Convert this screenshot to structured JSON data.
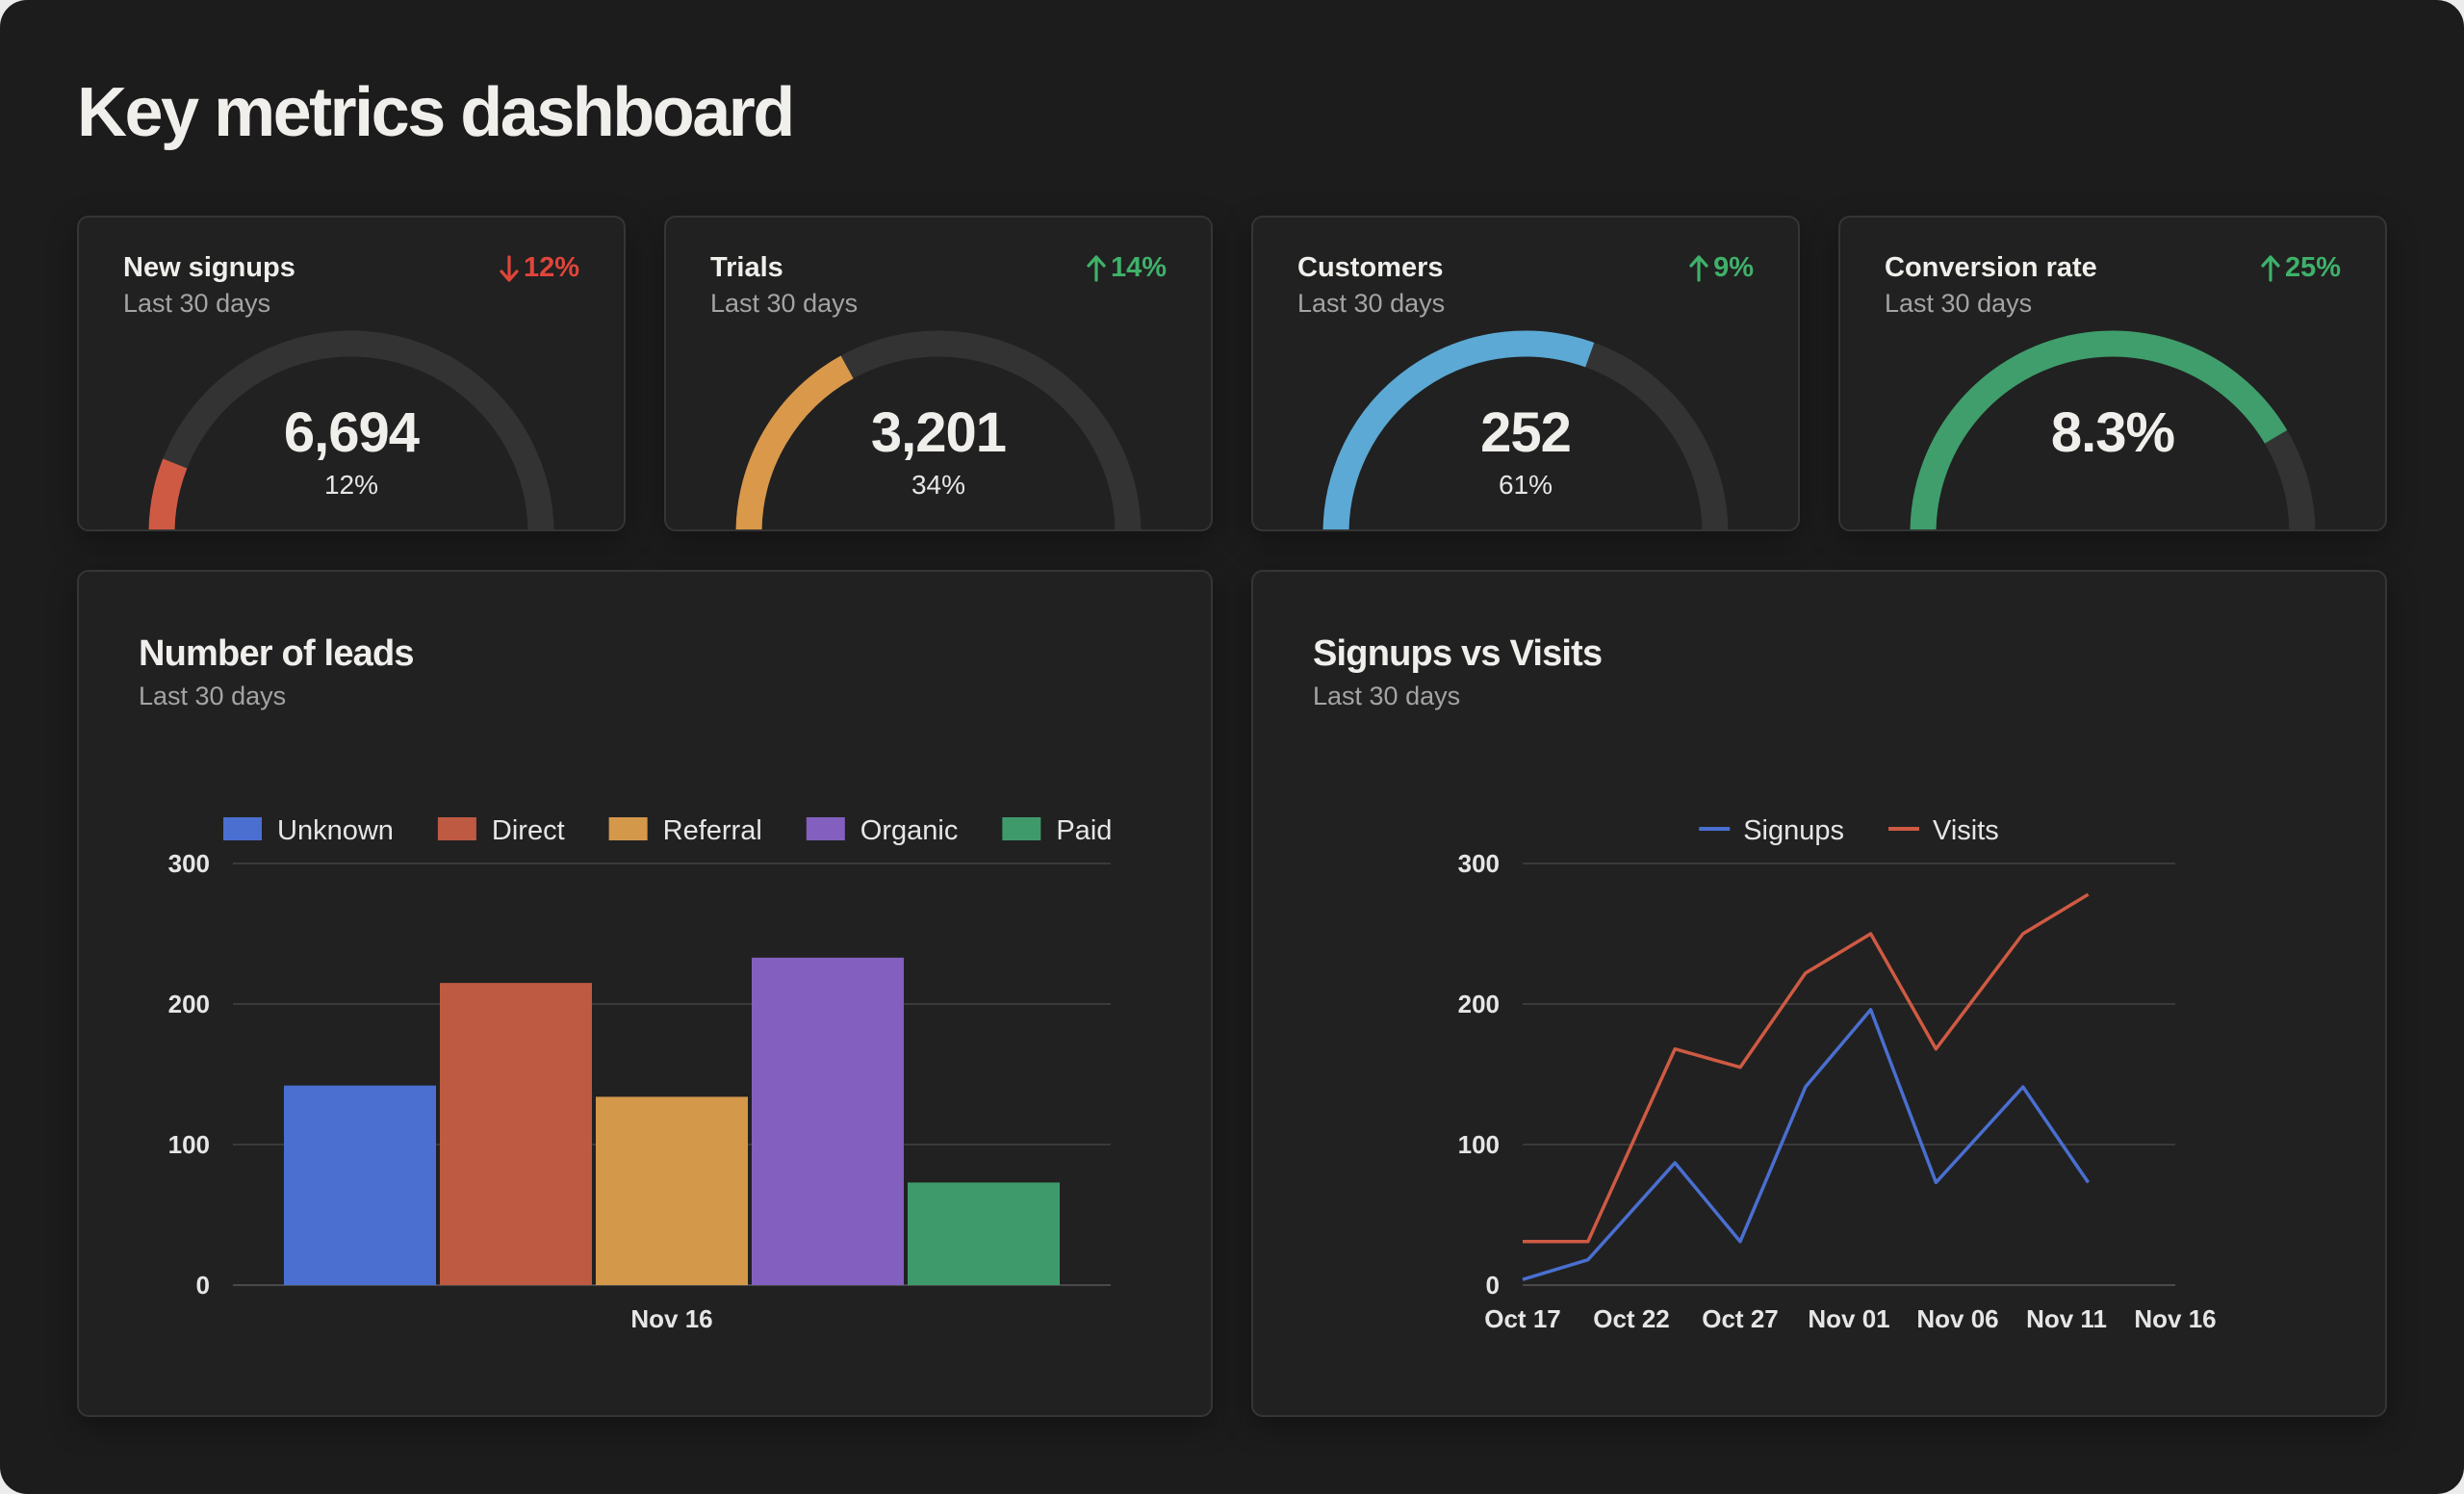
{
  "page": {
    "title": "Key metrics dashboard"
  },
  "kpis": [
    {
      "title": "New signups",
      "subtitle": "Last 30 days",
      "delta": "12%",
      "direction": "down",
      "value": "6,694",
      "percent_label": "12%",
      "fraction": 0.12,
      "color": "#cf5a43",
      "delta_color": "#e0453a"
    },
    {
      "title": "Trials",
      "subtitle": "Last 30 days",
      "delta": "14%",
      "direction": "up",
      "value": "3,201",
      "percent_label": "34%",
      "fraction": 0.34,
      "color": "#d9984a",
      "delta_color": "#3fb16a"
    },
    {
      "title": "Customers",
      "subtitle": "Last 30 days",
      "delta": "9%",
      "direction": "up",
      "value": "252",
      "percent_label": "61%",
      "fraction": 0.61,
      "color": "#5ba9d4",
      "delta_color": "#3fb16a"
    },
    {
      "title": "Conversion rate",
      "subtitle": "Last 30 days",
      "delta": "25%",
      "direction": "up",
      "value": "8.3%",
      "percent_label": "",
      "fraction": 0.83,
      "color": "#3f9e6b",
      "delta_color": "#3fb16a"
    }
  ],
  "leads_panel": {
    "title": "Number of leads",
    "subtitle": "Last 30 days"
  },
  "signups_panel": {
    "title": "Signups vs Visits",
    "subtitle": "Last 30 days"
  },
  "chart_data": [
    {
      "type": "bar",
      "title": "Number of leads",
      "categories": [
        "Nov 16"
      ],
      "series": [
        {
          "name": "Unknown",
          "values": [
            142
          ],
          "color": "#4a6fd1"
        },
        {
          "name": "Direct",
          "values": [
            215
          ],
          "color": "#bf5a42"
        },
        {
          "name": "Referral",
          "values": [
            134
          ],
          "color": "#d4984b"
        },
        {
          "name": "Organic",
          "values": [
            233
          ],
          "color": "#835fc0"
        },
        {
          "name": "Paid",
          "values": [
            73
          ],
          "color": "#3f9a6b"
        }
      ],
      "ylim": [
        0,
        300
      ],
      "yticks": [
        0,
        100,
        200,
        300
      ],
      "legend": "top",
      "grid": true
    },
    {
      "type": "line",
      "title": "Signups vs Visits",
      "x": [
        "Oct 17",
        "Oct 20",
        "Oct 24",
        "Oct 27",
        "Oct 30",
        "Nov 02",
        "Nov 05",
        "Nov 09",
        "Nov 12",
        "Nov 16"
      ],
      "xticks": [
        "Oct 17",
        "Oct 22",
        "Oct 27",
        "Nov 01",
        "Nov 06",
        "Nov 11",
        "Nov 16"
      ],
      "series": [
        {
          "name": "Signups",
          "values": [
            4,
            18,
            87,
            31,
            141,
            196,
            73,
            141,
            73,
            null
          ],
          "color": "#4a6fd1"
        },
        {
          "name": "Visits",
          "values": [
            31,
            31,
            168,
            155,
            222,
            250,
            168,
            250,
            278,
            null
          ],
          "color": "#cf5a43"
        }
      ],
      "ylim": [
        0,
        300
      ],
      "yticks": [
        0,
        100,
        200,
        300
      ],
      "legend": "top",
      "grid": true
    }
  ]
}
